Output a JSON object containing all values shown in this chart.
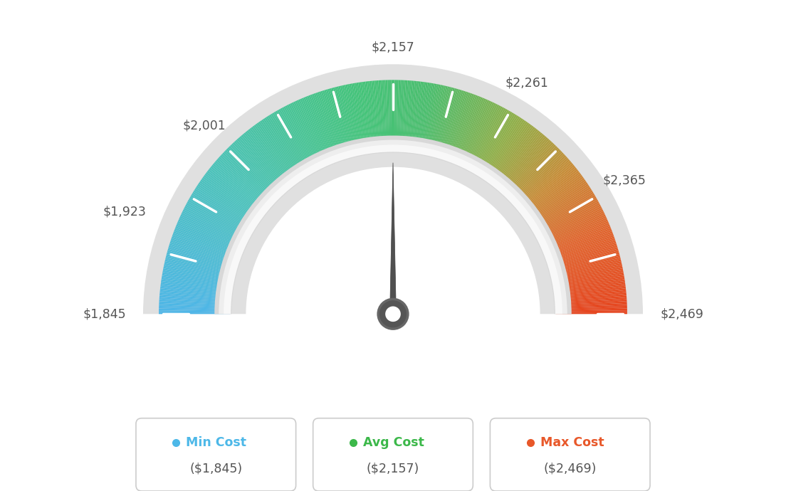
{
  "min_val": 1845,
  "avg_val": 2157,
  "max_val": 2469,
  "legend_labels": [
    "Min Cost",
    "Avg Cost",
    "Max Cost"
  ],
  "legend_values": [
    "($1,845)",
    "($2,157)",
    "($2,469)"
  ],
  "legend_colors": [
    "#4db8e8",
    "#3cb84a",
    "#e8582a"
  ],
  "background_color": "#ffffff",
  "label_data": [
    [
      1845,
      "$1,845"
    ],
    [
      1923,
      "$1,923"
    ],
    [
      2001,
      "$2,001"
    ],
    [
      2157,
      "$2,157"
    ],
    [
      2261,
      "$2,261"
    ],
    [
      2365,
      "$2,365"
    ],
    [
      2469,
      "$2,469"
    ]
  ],
  "gauge_colors": [
    [
      0.0,
      [
        78,
        182,
        232
      ]
    ],
    [
      0.25,
      [
        90,
        195,
        175
      ]
    ],
    [
      0.5,
      [
        72,
        192,
        120
      ]
    ],
    [
      0.65,
      [
        130,
        185,
        90
      ]
    ],
    [
      0.78,
      [
        200,
        150,
        60
      ]
    ],
    [
      0.88,
      [
        225,
        110,
        50
      ]
    ],
    [
      1.0,
      [
        230,
        75,
        35
      ]
    ]
  ]
}
